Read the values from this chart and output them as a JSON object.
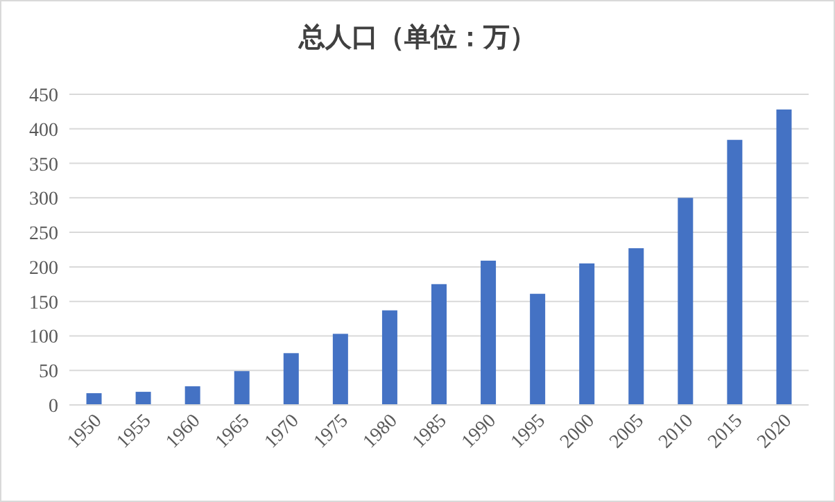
{
  "chart_data": {
    "type": "bar",
    "title": "总人口（单位：万）",
    "categories": [
      "1950",
      "1955",
      "1960",
      "1965",
      "1970",
      "1975",
      "1980",
      "1985",
      "1990",
      "1995",
      "2000",
      "2005",
      "2010",
      "2015",
      "2020"
    ],
    "values": [
      17,
      19,
      27,
      49,
      75,
      103,
      137,
      175,
      209,
      161,
      205,
      227,
      300,
      384,
      428
    ],
    "color": "#4472c4",
    "ylim": [
      0,
      450
    ],
    "yticks": [
      0,
      50,
      100,
      150,
      200,
      250,
      300,
      350,
      400,
      450
    ],
    "grid": "y"
  }
}
